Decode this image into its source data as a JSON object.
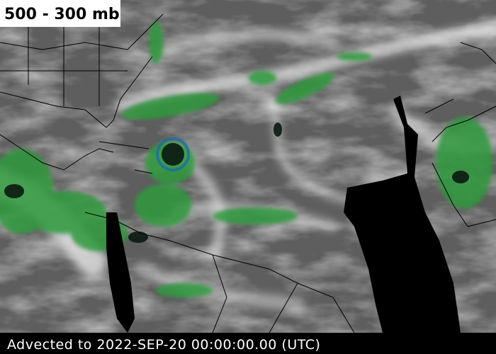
{
  "header": {
    "title": "500 - 300 mb"
  },
  "footer": {
    "timestamp": "Advected to 2022-SEP-20 00:00:00.00 (UTC)"
  }
}
